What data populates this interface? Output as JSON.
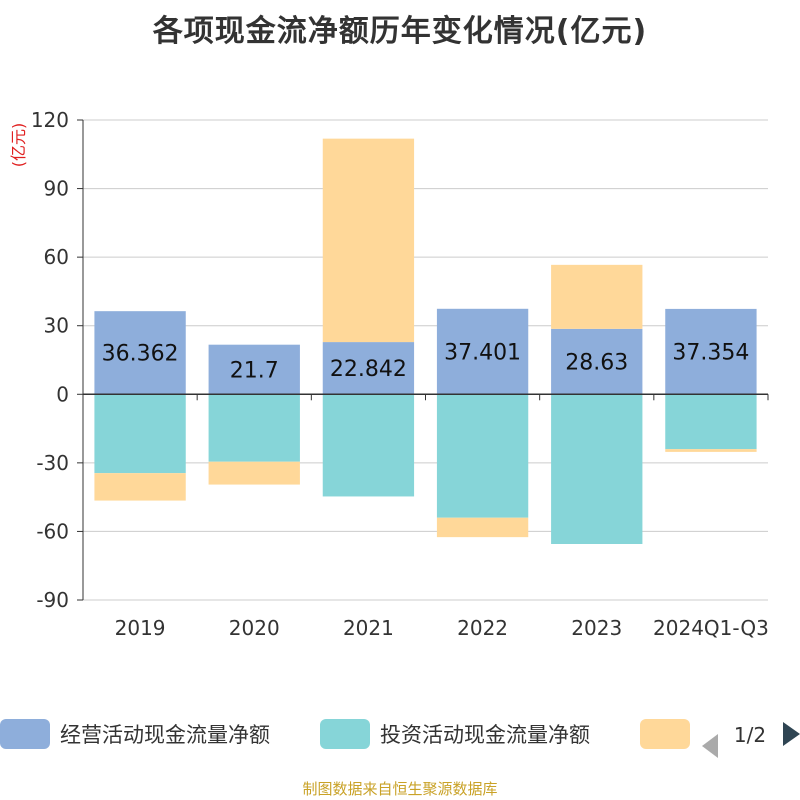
{
  "title": "各项现金流净额历年变化情况(亿元)",
  "footer": "制图数据来自恒生聚源数据库",
  "colors": {
    "operating": "#8eaedb",
    "investing": "#86d5d8",
    "financing": "#ffd899",
    "unit": "#e02020",
    "axis": "#333333",
    "grid": "#cccccc",
    "footer": "#c9a227"
  },
  "legend": {
    "items": [
      "经营活动现金流量净额",
      "投资活动现金流量净额",
      ""
    ],
    "page": "1/2"
  },
  "chart_data": {
    "type": "bar",
    "stacked": true,
    "unit_label": "(亿元)",
    "categories": [
      "2019",
      "2020",
      "2021",
      "2022",
      "2023",
      "2024Q1-Q3"
    ],
    "ylim": [
      -90,
      120
    ],
    "yticks": [
      -90,
      -60,
      -30,
      0,
      30,
      60,
      90,
      120
    ],
    "series": [
      {
        "name": "经营活动现金流量净额",
        "values": [
          36.362,
          21.7,
          22.842,
          37.401,
          28.63,
          37.354
        ],
        "show_labels": true
      },
      {
        "name": "投资活动现金流量净额",
        "values": [
          -34.5,
          -29.5,
          -44.7,
          -54.0,
          -65.5,
          -24.0
        ],
        "show_labels": false
      },
      {
        "name": "",
        "values": [
          -12.0,
          -10.0,
          89.0,
          -8.5,
          28.0,
          -1.2
        ],
        "show_labels": false
      }
    ]
  }
}
